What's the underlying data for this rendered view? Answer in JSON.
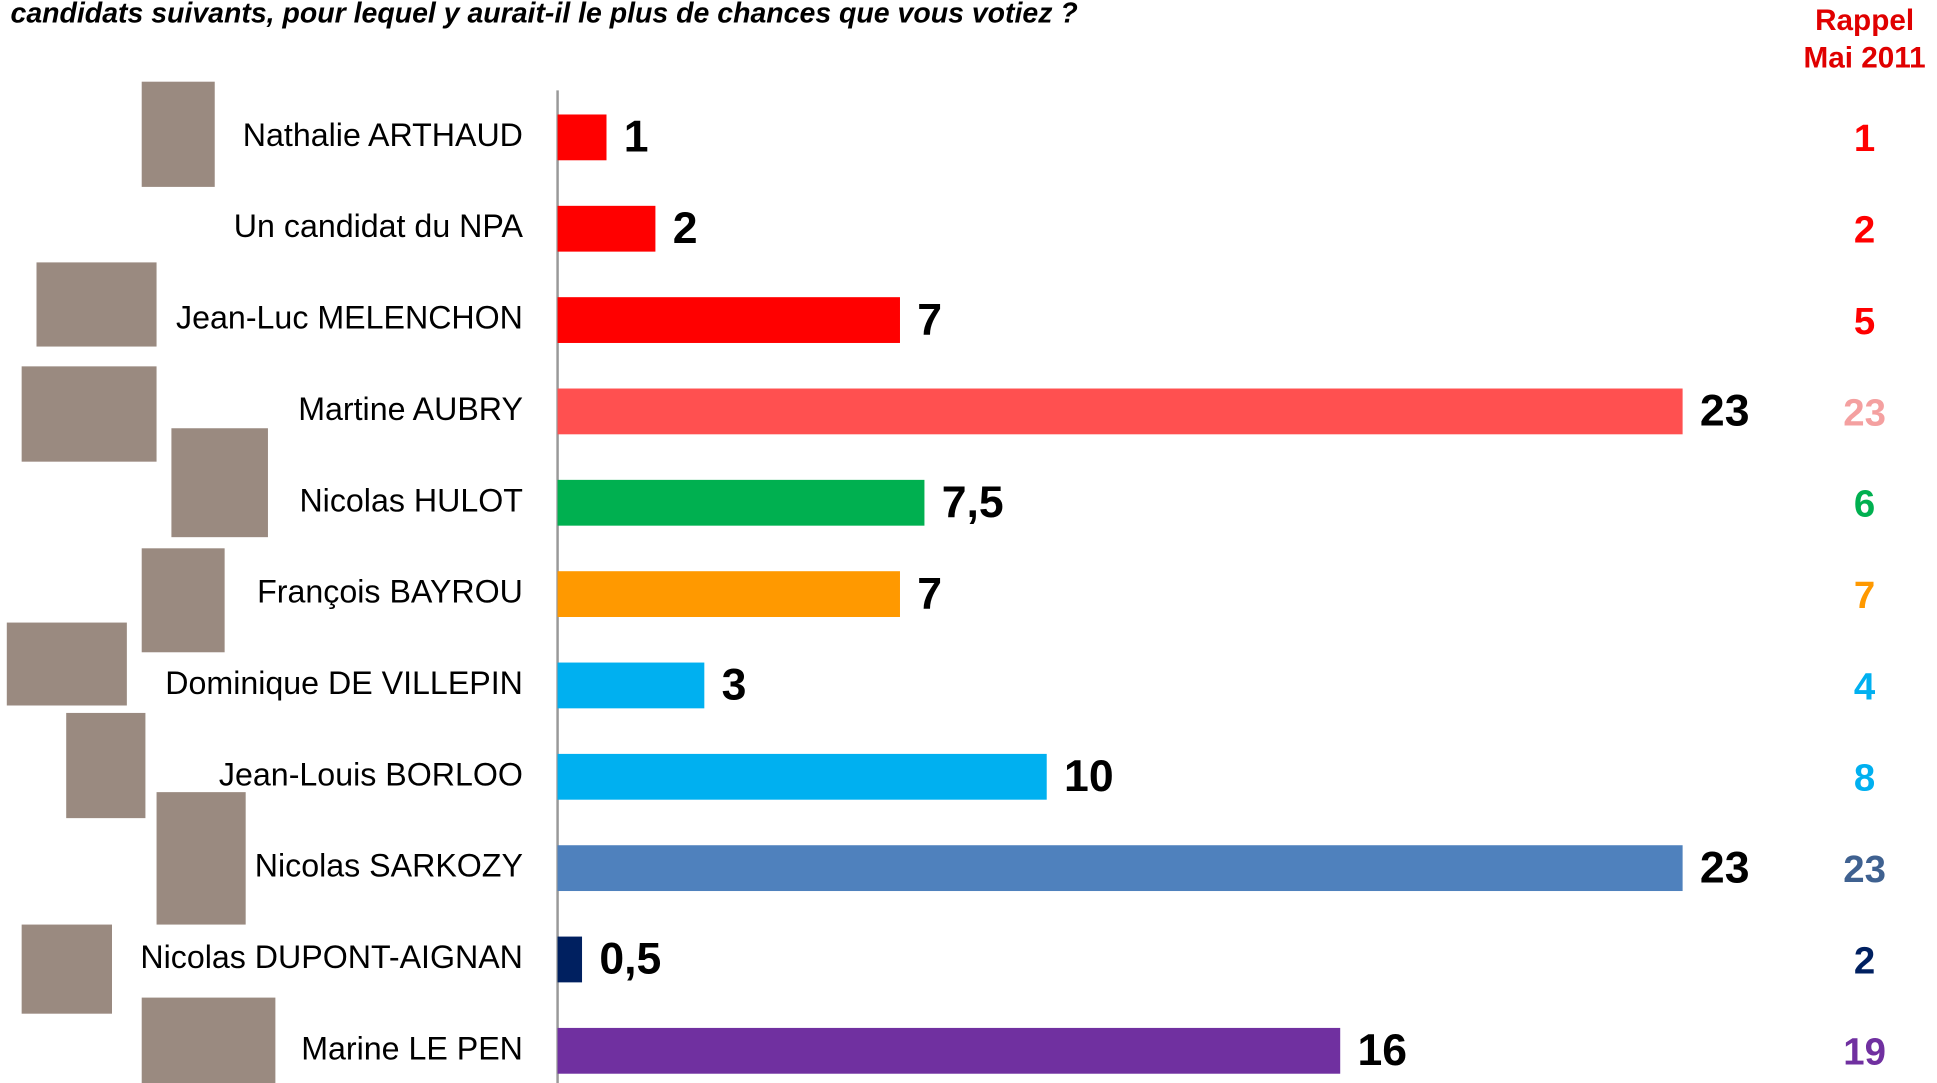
{
  "chart_data": {
    "type": "hbar",
    "title": "candidats suivants, pour lequel y aurait-il le plus de chances que vous votiez ?",
    "categories": [
      "Nathalie ARTHAUD",
      "Un candidat du NPA",
      "Jean-Luc MELENCHON",
      "Martine AUBRY",
      "Nicolas HULOT",
      "François BAYROU",
      "Dominique DE VILLEPIN",
      "Jean-Louis BORLOO",
      "Nicolas SARKOZY",
      "Nicolas DUPONT-AIGNAN",
      "Marine LE PEN"
    ],
    "values": [
      1,
      2,
      7,
      23,
      7.5,
      7,
      3,
      10,
      23,
      0.5,
      16
    ],
    "value_labels": [
      "1",
      "2",
      "7",
      "23",
      "7,5",
      "7",
      "3",
      "10",
      "23",
      "0,5",
      "16"
    ],
    "colors": [
      "#ff0000",
      "#ff0000",
      "#ff0000",
      "#ff5050",
      "#00b050",
      "#ff9900",
      "#00b0f0",
      "#00b0f0",
      "#4f81bd",
      "#002060",
      "#7030a0"
    ],
    "xlim": [
      0,
      25
    ],
    "recall": {
      "title": [
        "Rappel",
        "Mai 2011"
      ],
      "values": [
        1,
        2,
        5,
        23,
        6,
        7,
        4,
        8,
        23,
        2,
        19
      ],
      "colors": [
        "#ff0000",
        "#ff0000",
        "#ff0000",
        "#f4a0a0",
        "#00b050",
        "#ff9900",
        "#00b0f0",
        "#00b0f0",
        "#3f6190",
        "#002060",
        "#7030a0"
      ]
    }
  }
}
